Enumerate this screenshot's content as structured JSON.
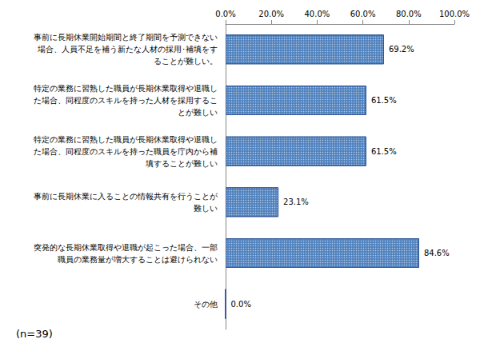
{
  "chart_data": {
    "type": "bar",
    "orientation": "horizontal",
    "categories": [
      "事前に長期休業開始期間と終了期間を予測できない場合、人員不足を補う新たな人材の採用･補填をすることが難しい。",
      "特定の業務に習熟した職員が長期休業取得や退職した場合、同程度のスキルを持った人材を採用することが難しい",
      "特定の業務に習熟した職員が長期休業取得や退職した場合、同程度のスキルを持った職員を庁内から補填することが難しい",
      "事前に長期休業に入ることの情報共有を行うことが難しい",
      "突発的な長期休業取得や退職が起こった場合、一部職員の業務量が増大することは避けられない",
      "その他"
    ],
    "values": [
      69.2,
      61.5,
      61.5,
      23.1,
      84.6,
      0.0
    ],
    "value_labels": [
      "69.2%",
      "61.5%",
      "61.5%",
      "23.1%",
      "84.6%",
      "0.0%"
    ],
    "data_labels": true,
    "color": "#4f81bd",
    "xlim": [
      0,
      100
    ],
    "xticks": [
      {
        "value": 0,
        "label": "0.0%"
      },
      {
        "value": 20,
        "label": "20.0%"
      },
      {
        "value": 40,
        "label": "40.0%"
      },
      {
        "value": 60,
        "label": "60.0%"
      },
      {
        "value": 80,
        "label": "80.0%"
      },
      {
        "value": 100,
        "label": "100.0%"
      }
    ],
    "grid": false,
    "annotations": [
      "(n=39)"
    ]
  }
}
